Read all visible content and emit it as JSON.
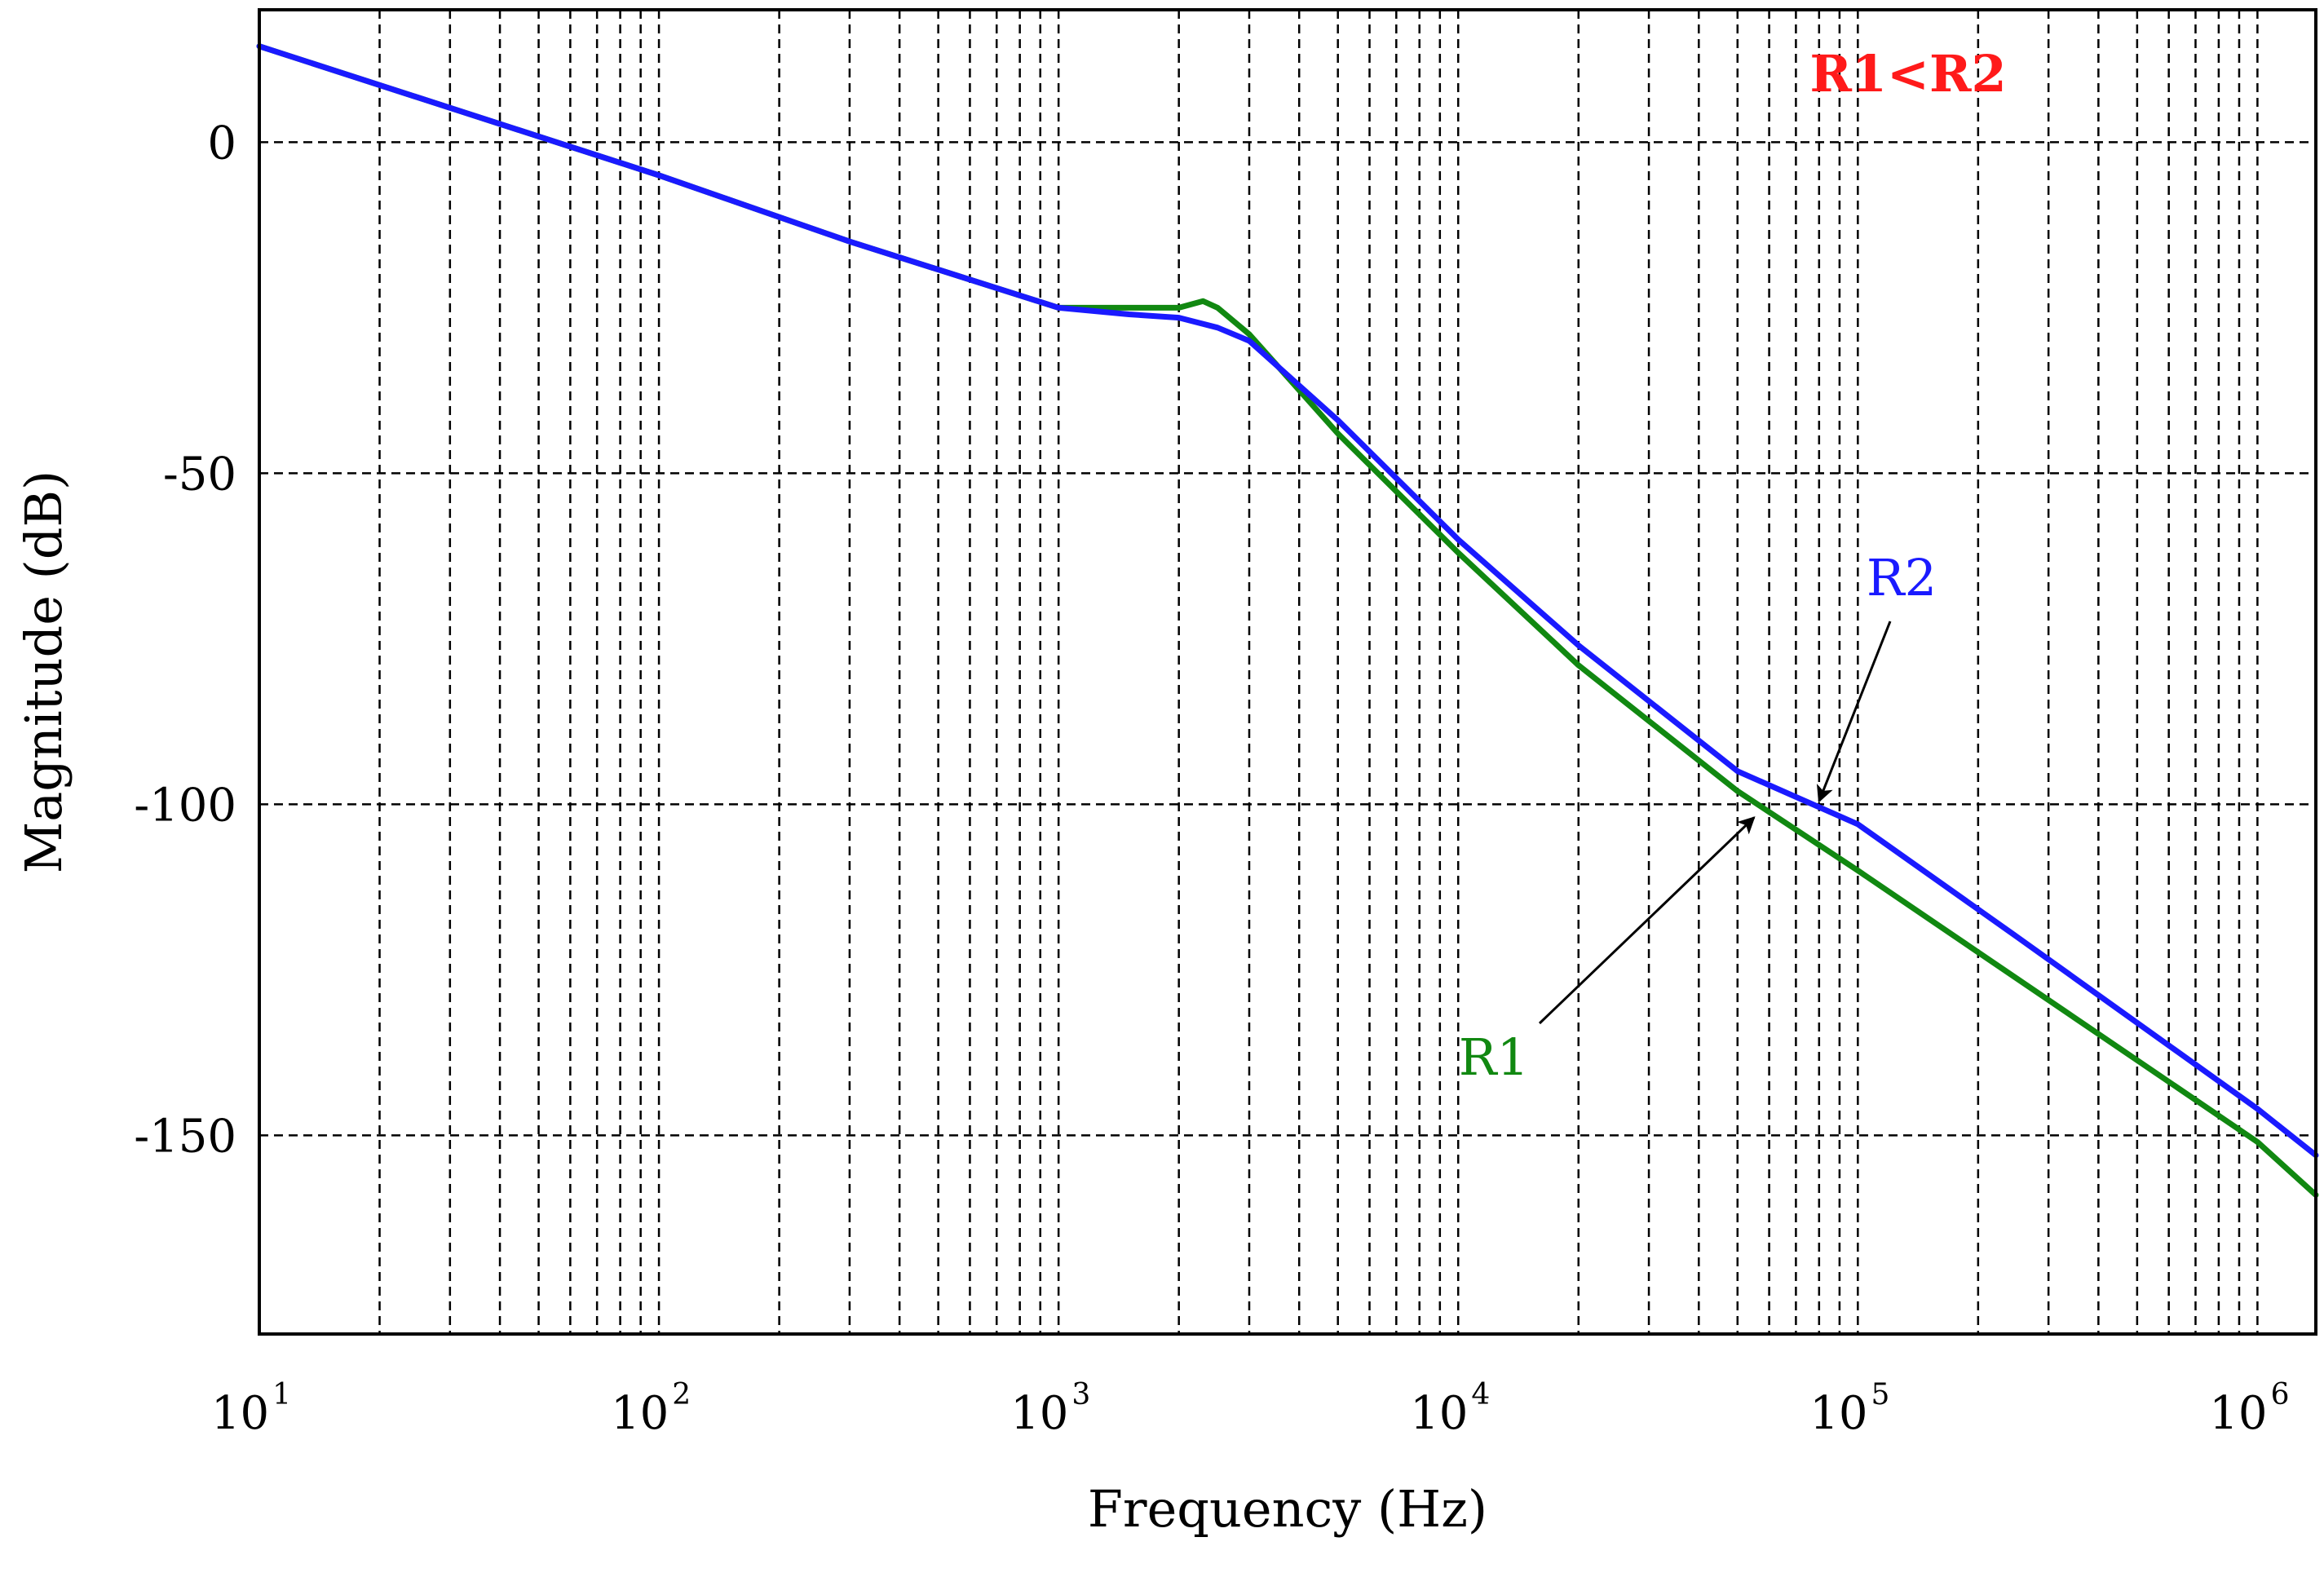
{
  "chart_data": {
    "type": "line",
    "title": "",
    "xlabel": "Frequency (Hz)",
    "ylabel": "Magnitude (dB)",
    "xscale": "log",
    "xlim": [
      10,
      1400000
    ],
    "ylim": [
      -180,
      20
    ],
    "grid": true,
    "x_ticks": [
      {
        "base": "10",
        "exp": "1",
        "value": 10
      },
      {
        "base": "10",
        "exp": "2",
        "value": 100
      },
      {
        "base": "10",
        "exp": "3",
        "value": 1000
      },
      {
        "base": "10",
        "exp": "4",
        "value": 10000
      },
      {
        "base": "10",
        "exp": "5",
        "value": 100000
      },
      {
        "base": "10",
        "exp": "6",
        "value": 1000000
      }
    ],
    "y_ticks": [
      {
        "label": "0",
        "value": 0
      },
      {
        "label": "-50",
        "value": -50
      },
      {
        "label": "-100",
        "value": -100
      },
      {
        "label": "-150",
        "value": -150
      }
    ],
    "series": [
      {
        "name": "R2",
        "color": "#1a1aff",
        "x": [
          10,
          100,
          300,
          1000,
          1500,
          2000,
          2500,
          3000,
          5000,
          10000,
          20000,
          50000,
          100000,
          250000,
          1000000,
          1400000
        ],
        "y": [
          14.5,
          -5,
          -15,
          -25,
          -26,
          -26.5,
          -28,
          -30,
          -42,
          -60,
          -76,
          -95,
          -103,
          -120,
          -146,
          -153
        ]
      },
      {
        "name": "R1",
        "color": "#118811",
        "x": [
          10,
          100,
          300,
          1000,
          1500,
          2000,
          2300,
          2500,
          3000,
          5000,
          10000,
          20000,
          50000,
          100000,
          1000000,
          1400000
        ],
        "y": [
          14.5,
          -5,
          -15,
          -25,
          -25,
          -25,
          -24,
          -25,
          -29,
          -44,
          -62,
          -79,
          -98,
          -110,
          -151,
          -159
        ]
      }
    ],
    "annotations": [
      {
        "text": "R1<R2",
        "color": "#ff1a1a",
        "bold": true,
        "position": "top-right"
      },
      {
        "text": "R2",
        "color": "#1a1aff",
        "series": "R2",
        "points_to": {
          "x": 80000,
          "y": -101
        }
      },
      {
        "text": "R1",
        "color": "#118811",
        "series": "R1",
        "points_to": {
          "x": 55000,
          "y": -102
        }
      }
    ]
  }
}
